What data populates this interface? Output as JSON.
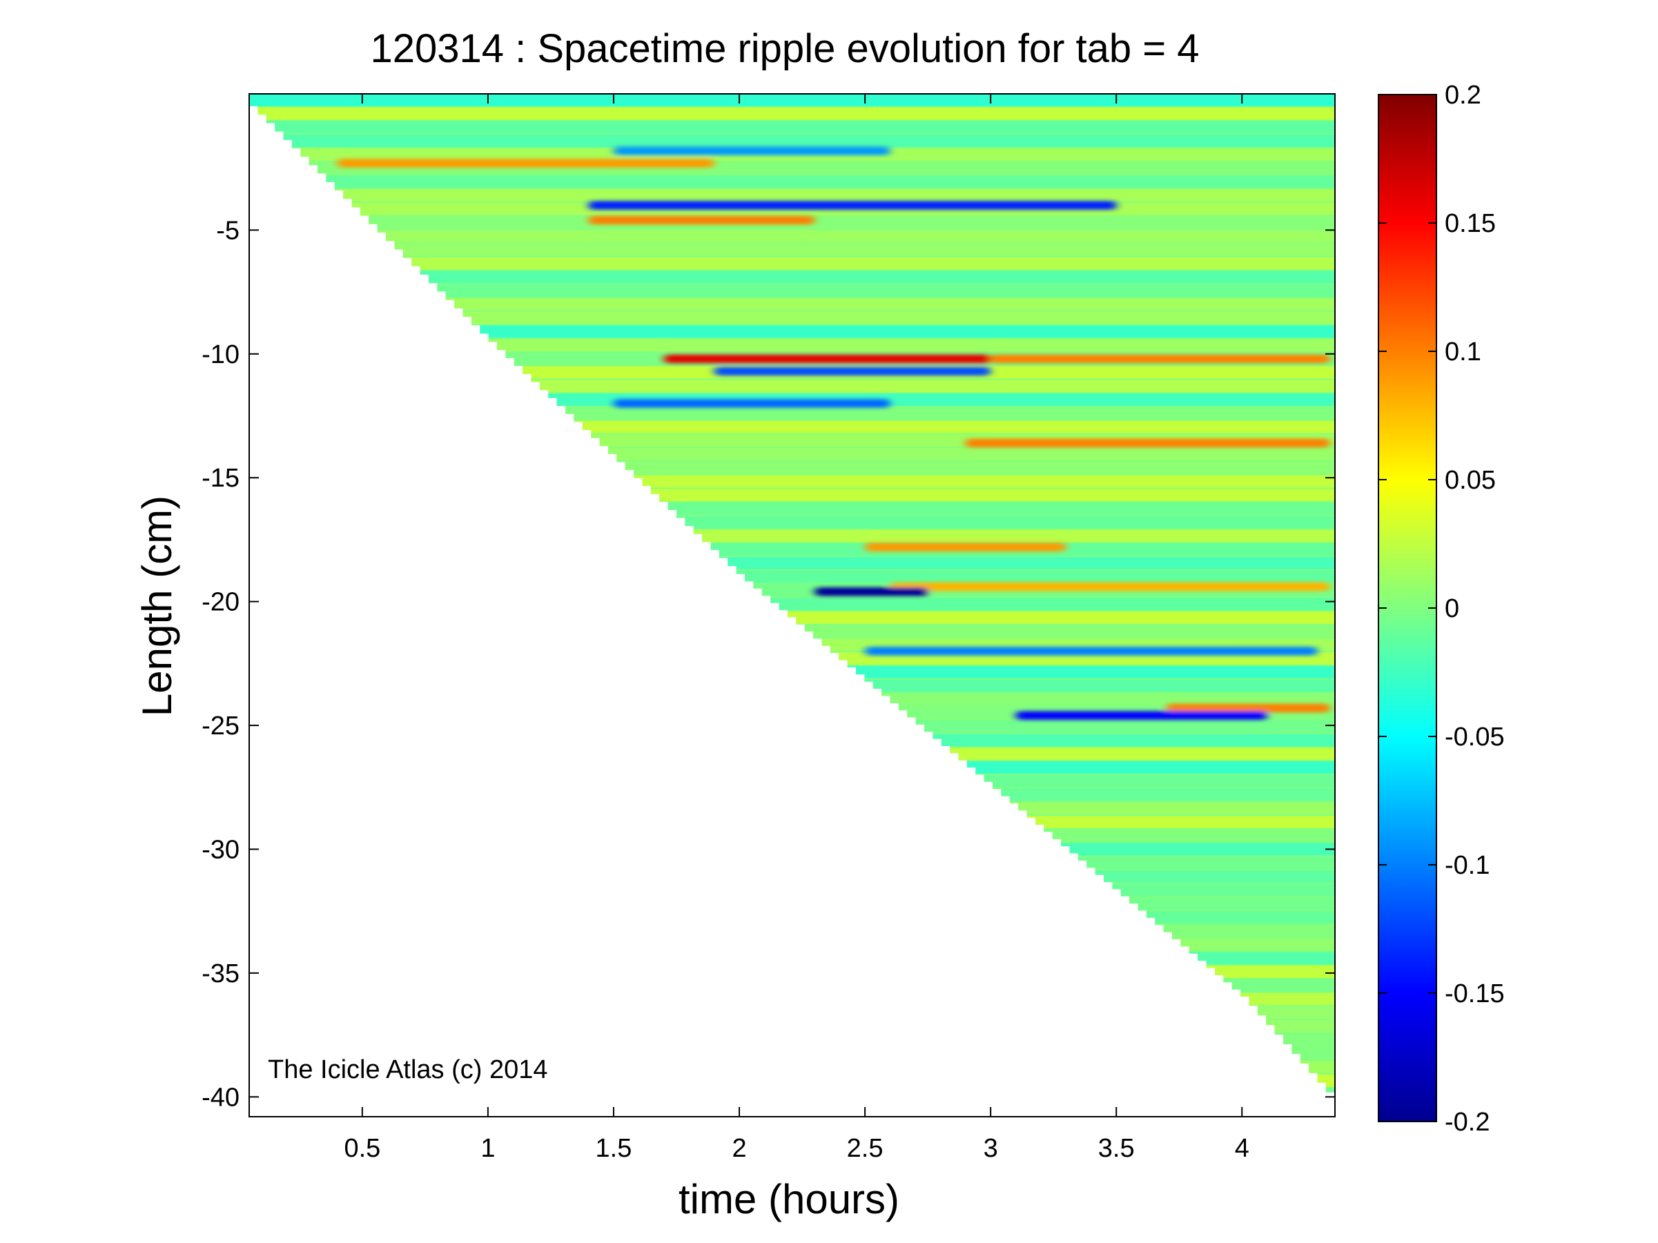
{
  "chart_data": {
    "type": "heatmap",
    "title": "120314 : Spacetime ripple evolution for tab = 4",
    "xlabel": "time (hours)",
    "ylabel": "Length (cm)",
    "annotation": "The Icicle Atlas (c) 2014",
    "xlim": [
      0.05,
      4.37
    ],
    "ylim": [
      -40.8,
      0.5
    ],
    "x_ticks": [
      0.5,
      1,
      1.5,
      2,
      2.5,
      3,
      3.5,
      4
    ],
    "x_tick_labels": [
      "0.5",
      "1",
      "1.5",
      "2",
      "2.5",
      "3",
      "3.5",
      "4"
    ],
    "y_ticks": [
      -5,
      -10,
      -15,
      -20,
      -25,
      -30,
      -35,
      -40
    ],
    "y_tick_labels": [
      "-5",
      "-10",
      "-15",
      "-20",
      "-25",
      "-30",
      "-35",
      "-40"
    ],
    "grid": false,
    "colormap": "jet",
    "clim": [
      -0.2,
      0.2
    ],
    "colorbar_ticks": [
      0.2,
      0.15,
      0.1,
      0.05,
      0,
      -0.05,
      -0.1,
      -0.15,
      -0.2
    ],
    "colorbar_tick_labels": [
      "0.2",
      "0.15",
      "0.1",
      "0.05",
      "0",
      "-0.05",
      "-0.1",
      "-0.15",
      "-0.2"
    ],
    "front_length_vs_time": [
      [
        0.05,
        0.0
      ],
      [
        1.0,
        -9.5
      ],
      [
        2.0,
        -19.0
      ],
      [
        3.0,
        -27.5
      ],
      [
        4.0,
        -36.0
      ],
      [
        4.35,
        -40.0
      ]
    ],
    "ripples": [
      {
        "y": -1.8,
        "value": -0.09,
        "t_start": 1.5,
        "t_end": 2.6
      },
      {
        "y": -2.3,
        "value": 0.09,
        "t_start": 0.4,
        "t_end": 1.9
      },
      {
        "y": -4.0,
        "value": -0.14,
        "t_start": 1.4,
        "t_end": 3.5
      },
      {
        "y": -4.6,
        "value": 0.1,
        "t_start": 1.4,
        "t_end": 2.3
      },
      {
        "y": -10.2,
        "value": 0.16,
        "t_start": 1.7,
        "t_end": 3.0
      },
      {
        "y": -10.2,
        "value": 0.1,
        "t_start": 3.0,
        "t_end": 4.35
      },
      {
        "y": -10.7,
        "value": -0.12,
        "t_start": 1.9,
        "t_end": 3.0
      },
      {
        "y": -12.0,
        "value": -0.11,
        "t_start": 1.5,
        "t_end": 2.6
      },
      {
        "y": -13.6,
        "value": 0.1,
        "t_start": 2.9,
        "t_end": 4.35
      },
      {
        "y": -17.8,
        "value": 0.09,
        "t_start": 2.5,
        "t_end": 3.3
      },
      {
        "y": -19.4,
        "value": 0.08,
        "t_start": 2.6,
        "t_end": 4.35
      },
      {
        "y": -19.6,
        "value": -0.19,
        "t_start": 2.3,
        "t_end": 2.75
      },
      {
        "y": -22.0,
        "value": -0.1,
        "t_start": 2.5,
        "t_end": 4.3
      },
      {
        "y": -24.3,
        "value": 0.1,
        "t_start": 3.7,
        "t_end": 4.35
      },
      {
        "y": -24.6,
        "value": -0.15,
        "t_start": 3.1,
        "t_end": 4.1
      }
    ]
  }
}
